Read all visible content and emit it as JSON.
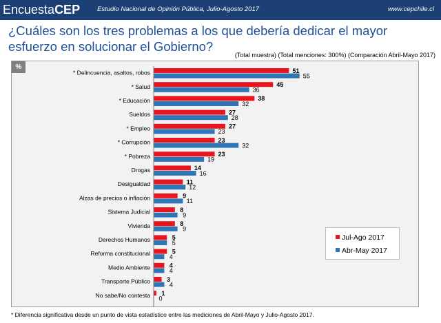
{
  "header": {
    "brand_main": "Encuesta",
    "brand_bold": "CEP",
    "study": "Estudio Nacional de Opinión Pública, Julio-Agosto 2017",
    "website": "www.cepchile.cl"
  },
  "question": "¿Cuáles son los tres problemas a los que debería dedicar el mayor esfuerzo en solucionar el Gobierno?",
  "subtitle": "(Total muestra) (Total menciones: 300%) (Comparación Abril-Mayo 2017)",
  "percent_badge": "%",
  "footnote": "* Diferencia significativa desde un punto de vista estadístico entre las mediciones de Abril-Mayo y Julio-Agosto 2017.",
  "colors": {
    "header_bg": "#1c3f75",
    "title": "#1f4f97",
    "series_1": "#e8151f",
    "series_2": "#2e75b6"
  },
  "chart_data": {
    "type": "bar",
    "orientation": "horizontal",
    "categories": [
      "* Delincuencia, asaltos, robos",
      "* Salud",
      "* Educación",
      "Sueldos",
      "* Empleo",
      "* Corrupción",
      "* Pobreza",
      "Drogas",
      "Desigualdad",
      "Alzas de precios o inflación",
      "Sistema Judicial",
      "Vivienda",
      "Derechos Humanos",
      "Reforma constitucional",
      "Medio Ambiente",
      "Transporte Público",
      "No sabe/No contesta"
    ],
    "series": [
      {
        "name": "Jul-Ago 2017",
        "color": "#e8151f",
        "bold_labels": true,
        "values": [
          51,
          45,
          38,
          27,
          27,
          23,
          23,
          14,
          11,
          9,
          8,
          8,
          5,
          5,
          4,
          3,
          1
        ]
      },
      {
        "name": "Abr-May 2017",
        "color": "#2e75b6",
        "bold_labels": false,
        "values": [
          55,
          36,
          32,
          28,
          23,
          32,
          19,
          16,
          12,
          11,
          9,
          9,
          5,
          4,
          4,
          4,
          0
        ]
      }
    ],
    "xlim": [
      0,
      60
    ],
    "legend_position": "bottom-right"
  }
}
